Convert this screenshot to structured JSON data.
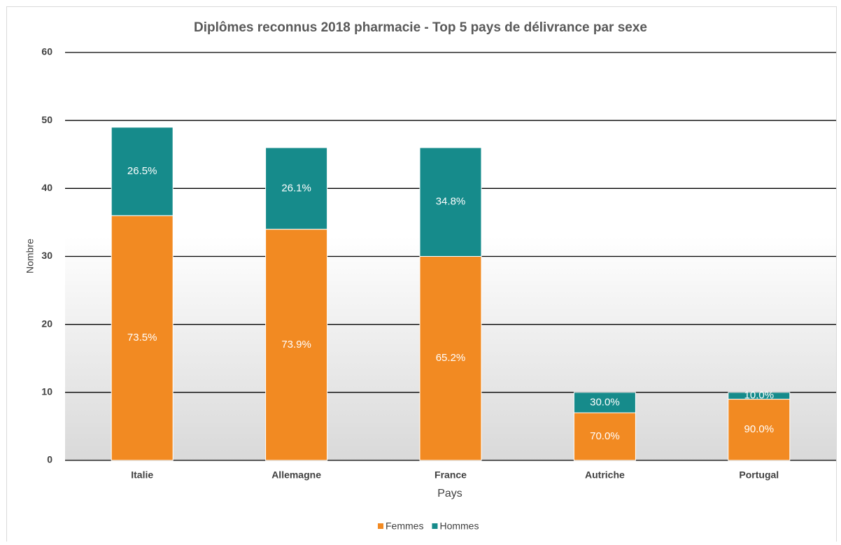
{
  "chart_data": {
    "type": "stacked_bar",
    "title": "Diplômes reconnus 2018 pharmacie - Top 5 pays de délivrance par sexe",
    "x_label": "Pays",
    "y_label": "Nombre",
    "categories": [
      "Italie",
      "Allemagne",
      "France",
      "Autriche",
      "Portugal"
    ],
    "series": [
      {
        "name": "Femmes",
        "color": "#f28a22",
        "values": [
          36,
          34,
          30,
          7,
          9
        ],
        "percent_labels": [
          "73.5%",
          "73.9%",
          "65.2%",
          "70.0%",
          "90.0%"
        ]
      },
      {
        "name": "Hommes",
        "color": "#168b8b",
        "values": [
          13,
          12,
          16,
          3,
          1
        ],
        "percent_labels": [
          "26.5%",
          "26.1%",
          "34.8%",
          "30.0%",
          "10.0%"
        ]
      }
    ],
    "ylim": [
      0,
      60
    ],
    "yticks": [
      0,
      10,
      20,
      30,
      40,
      50,
      60
    ],
    "grid": true,
    "legend": "bottom"
  }
}
